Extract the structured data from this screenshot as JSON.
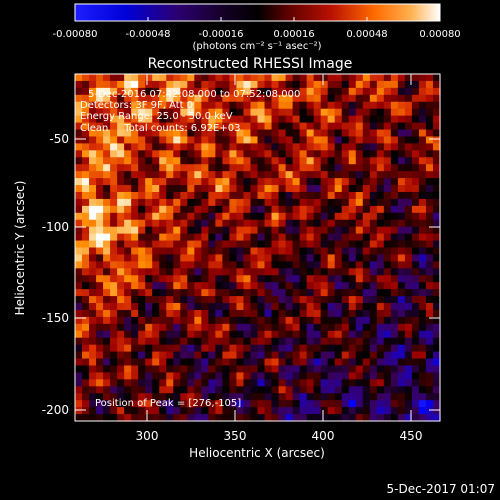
{
  "colorbar": {
    "ticks": [
      "-0.00080",
      "-0.00048",
      "-0.00016",
      "0.00016",
      "0.00048",
      "0.00080"
    ],
    "unit_label": "(photons cm⁻² s⁻¹ asec⁻²)"
  },
  "plot": {
    "title": "Reconstructed RHESSI Image",
    "x_axis_label": "Heliocentric X (arcsec)",
    "y_axis_label": "Heliocentric Y (arcsec)",
    "x_ticks": [
      "300",
      "350",
      "400",
      "450"
    ],
    "y_ticks": [
      "-50",
      "-100",
      "-150",
      "-200"
    ],
    "info_lines": [
      "5-Dec-2016 07:42:08.000 to 07:52:08.000",
      "Detectors: 3F 9F, Att 0",
      "Energy Range: 25.0 - 50.0 keV",
      "Clean     Total counts: 6.92E+03"
    ],
    "peak_label": "Position of Peak = [276,-105]"
  },
  "footer": {
    "timestamp": "5-Dec-2017 01:07"
  },
  "colors": {
    "background": "#000000",
    "text": "#ffffff",
    "colormap": [
      "#1b1bff",
      "#0000ff",
      "#2a0090",
      "#3a0058",
      "#000000",
      "#4a0000",
      "#9a0000",
      "#dd3300",
      "#ff8a00",
      "#ffd080",
      "#ffffff"
    ]
  },
  "chart_data": {
    "type": "heatmap",
    "title": "Reconstructed RHESSI Image",
    "xlabel": "Heliocentric X (arcsec)",
    "ylabel": "Heliocentric Y (arcsec)",
    "xlim": [
      265,
      455
    ],
    "ylim": [
      -210,
      -20
    ],
    "zlim": [
      -0.0008,
      0.0008
    ],
    "colorbar_ticks": [
      -0.0008,
      -0.00048,
      -0.00016,
      0.00016,
      0.00048,
      0.0008
    ],
    "peak": [
      276,
      -105
    ]
  }
}
